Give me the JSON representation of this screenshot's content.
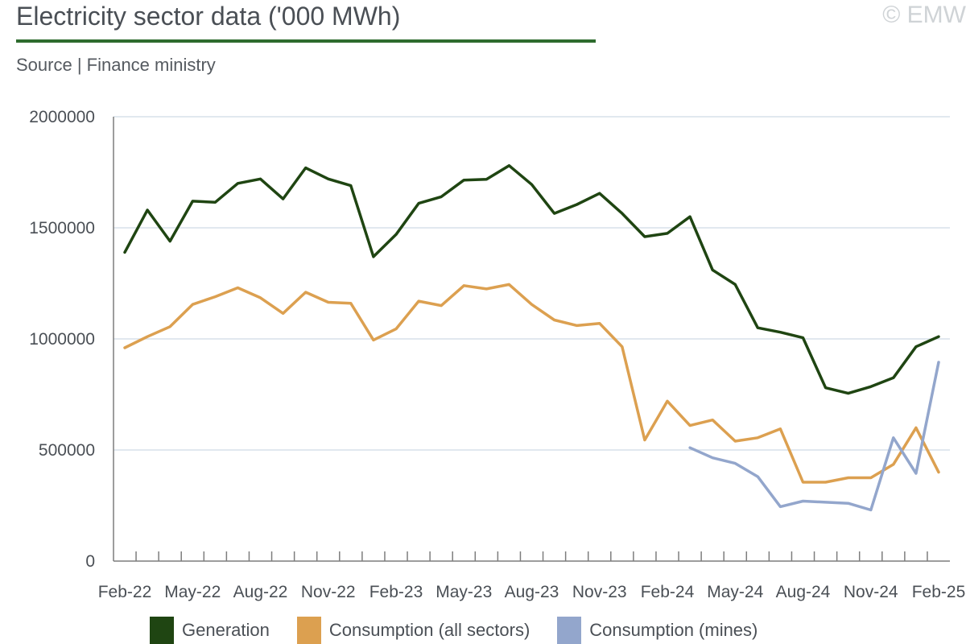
{
  "header": {
    "title": "Electricity sector data ('000 MWh)",
    "subtitle": "Source | Finance ministry",
    "copyright": "© EMW",
    "rule_color": "#2e6b2e"
  },
  "chart_data": {
    "type": "line",
    "title": "Electricity sector data ('000 MWh)",
    "subtitle": "Source | Finance ministry",
    "xlabel": "",
    "ylabel": "",
    "ylim": [
      0,
      2000000
    ],
    "yticks": [
      0,
      500000,
      1000000,
      1500000,
      2000000
    ],
    "grid": true,
    "legend_position": "bottom",
    "x": [
      "Feb-22",
      "Mar-22",
      "Apr-22",
      "May-22",
      "Jun-22",
      "Jul-22",
      "Aug-22",
      "Sep-22",
      "Oct-22",
      "Nov-22",
      "Dec-22",
      "Jan-23",
      "Feb-23",
      "Mar-23",
      "Apr-23",
      "May-23",
      "Jun-23",
      "Jul-23",
      "Aug-23",
      "Sep-23",
      "Oct-23",
      "Nov-23",
      "Dec-23",
      "Jan-24",
      "Feb-24",
      "Mar-24",
      "Apr-24",
      "May-24",
      "Jun-24",
      "Jul-24",
      "Aug-24",
      "Sep-24",
      "Oct-24",
      "Nov-24",
      "Dec-24",
      "Jan-25",
      "Feb-25"
    ],
    "x_tick_labels": [
      "Feb-22",
      "May-22",
      "Aug-22",
      "Nov-22",
      "Feb-23",
      "May-23",
      "Aug-23",
      "Nov-23",
      "Feb-24",
      "May-24",
      "Aug-24",
      "Nov-24",
      "Feb-25"
    ],
    "series": [
      {
        "name": "Generation",
        "color": "#1f4512",
        "values": [
          1390000,
          1580000,
          1440000,
          1620000,
          1615000,
          1700000,
          1720000,
          1630000,
          1770000,
          1720000,
          1690000,
          1370000,
          1470000,
          1610000,
          1640000,
          1715000,
          1718000,
          1780000,
          1695000,
          1565000,
          1605000,
          1655000,
          1565000,
          1460000,
          1475000,
          1550000,
          1310000,
          1245000,
          1050000,
          1030000,
          1005000,
          780000,
          755000,
          785000,
          825000,
          965000,
          1010000
        ]
      },
      {
        "name": "Consumption (all sectors)",
        "color": "#dca050",
        "values": [
          960000,
          1010000,
          1055000,
          1155000,
          1190000,
          1230000,
          1185000,
          1115000,
          1210000,
          1165000,
          1160000,
          995000,
          1045000,
          1170000,
          1150000,
          1240000,
          1225000,
          1245000,
          1155000,
          1085000,
          1060000,
          1070000,
          965000,
          545000,
          720000,
          610000,
          635000,
          540000,
          555000,
          595000,
          355000,
          355000,
          375000,
          375000,
          435000,
          600000,
          400000
        ]
      },
      {
        "name": "Consumption (mines)",
        "color": "#93a6cc",
        "values": [
          null,
          null,
          null,
          null,
          null,
          null,
          null,
          null,
          null,
          null,
          null,
          null,
          null,
          null,
          null,
          null,
          null,
          null,
          null,
          null,
          null,
          null,
          null,
          null,
          null,
          510000,
          465000,
          440000,
          380000,
          245000,
          270000,
          265000,
          260000,
          230000,
          555000,
          395000,
          895000
        ]
      }
    ]
  }
}
